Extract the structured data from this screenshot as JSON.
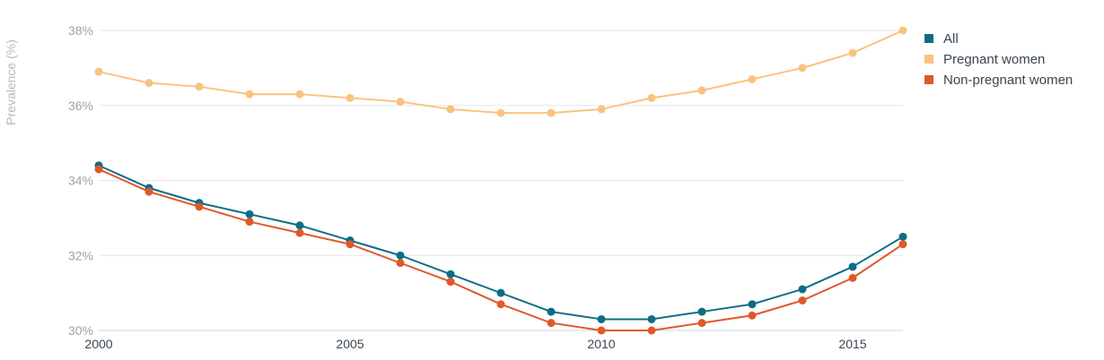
{
  "chart_data": {
    "type": "line",
    "ylabel": "Prevalence (%)",
    "xlabel": "",
    "x": [
      2000,
      2001,
      2002,
      2003,
      2004,
      2005,
      2006,
      2007,
      2008,
      2009,
      2010,
      2011,
      2012,
      2013,
      2014,
      2015,
      2016
    ],
    "xticks": [
      2000,
      2005,
      2010,
      2015
    ],
    "xlim": [
      2000,
      2016
    ],
    "ylim": [
      30,
      38
    ],
    "yticks": [
      30,
      32,
      34,
      36,
      38
    ],
    "ytick_labels": [
      "30%",
      "32%",
      "34%",
      "36%",
      "38%"
    ],
    "grid": "horizontal",
    "legend_position": "right",
    "series": [
      {
        "name": "All",
        "color": "#0b6e85",
        "values": [
          34.4,
          33.8,
          33.4,
          33.1,
          32.8,
          32.4,
          32.0,
          31.5,
          31.0,
          30.5,
          30.3,
          30.3,
          30.5,
          30.7,
          31.1,
          31.7,
          32.5
        ]
      },
      {
        "name": "Pregnant women",
        "color": "#fbc27f",
        "values": [
          36.9,
          36.6,
          36.5,
          36.3,
          36.3,
          36.2,
          36.1,
          35.9,
          35.8,
          35.8,
          35.9,
          36.2,
          36.4,
          36.7,
          37.0,
          37.4,
          38.0
        ]
      },
      {
        "name": "Non-pregnant women",
        "color": "#e0582a",
        "values": [
          34.3,
          33.7,
          33.3,
          32.9,
          32.6,
          32.3,
          31.8,
          31.3,
          30.7,
          30.2,
          30.0,
          30.0,
          30.2,
          30.4,
          30.8,
          31.4,
          32.3
        ]
      }
    ]
  }
}
